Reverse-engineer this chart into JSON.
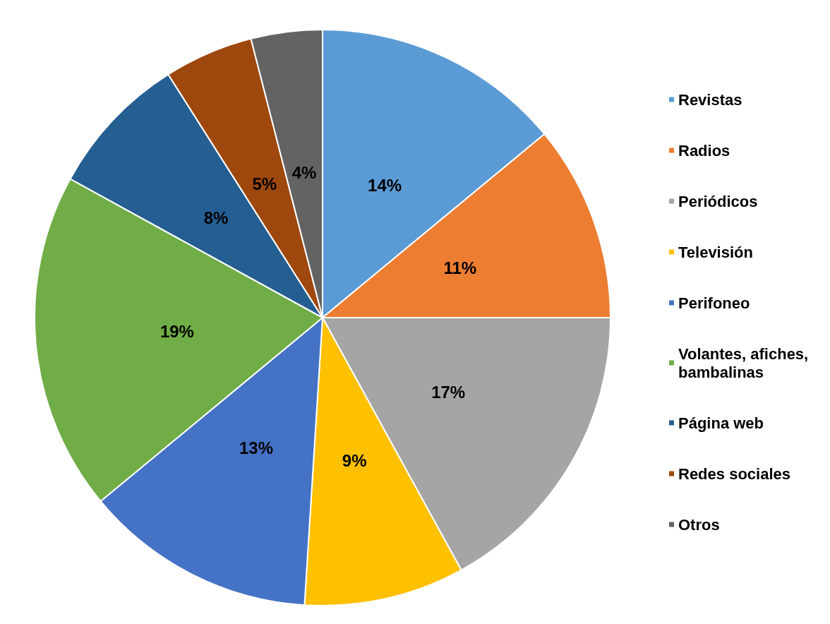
{
  "chart_data": {
    "type": "pie",
    "categories": [
      "Revistas",
      "Radios",
      "Periódicos",
      "Televisión",
      "Perifoneo",
      "Volantes, afiches, bambalinas",
      "Página web",
      "Redes sociales",
      "Otros"
    ],
    "values": [
      14,
      11,
      17,
      9,
      13,
      19,
      8,
      5,
      4
    ],
    "colors": [
      "#5b9bd5",
      "#ed7d31",
      "#a5a5a5",
      "#ffc000",
      "#4472c4",
      "#70ad47",
      "#255e91",
      "#9e480e",
      "#636363"
    ],
    "value_labels": [
      "14%",
      "11%",
      "17%",
      "9%",
      "13%",
      "19%",
      "8%",
      "5%",
      "4%"
    ],
    "legend": "right"
  }
}
